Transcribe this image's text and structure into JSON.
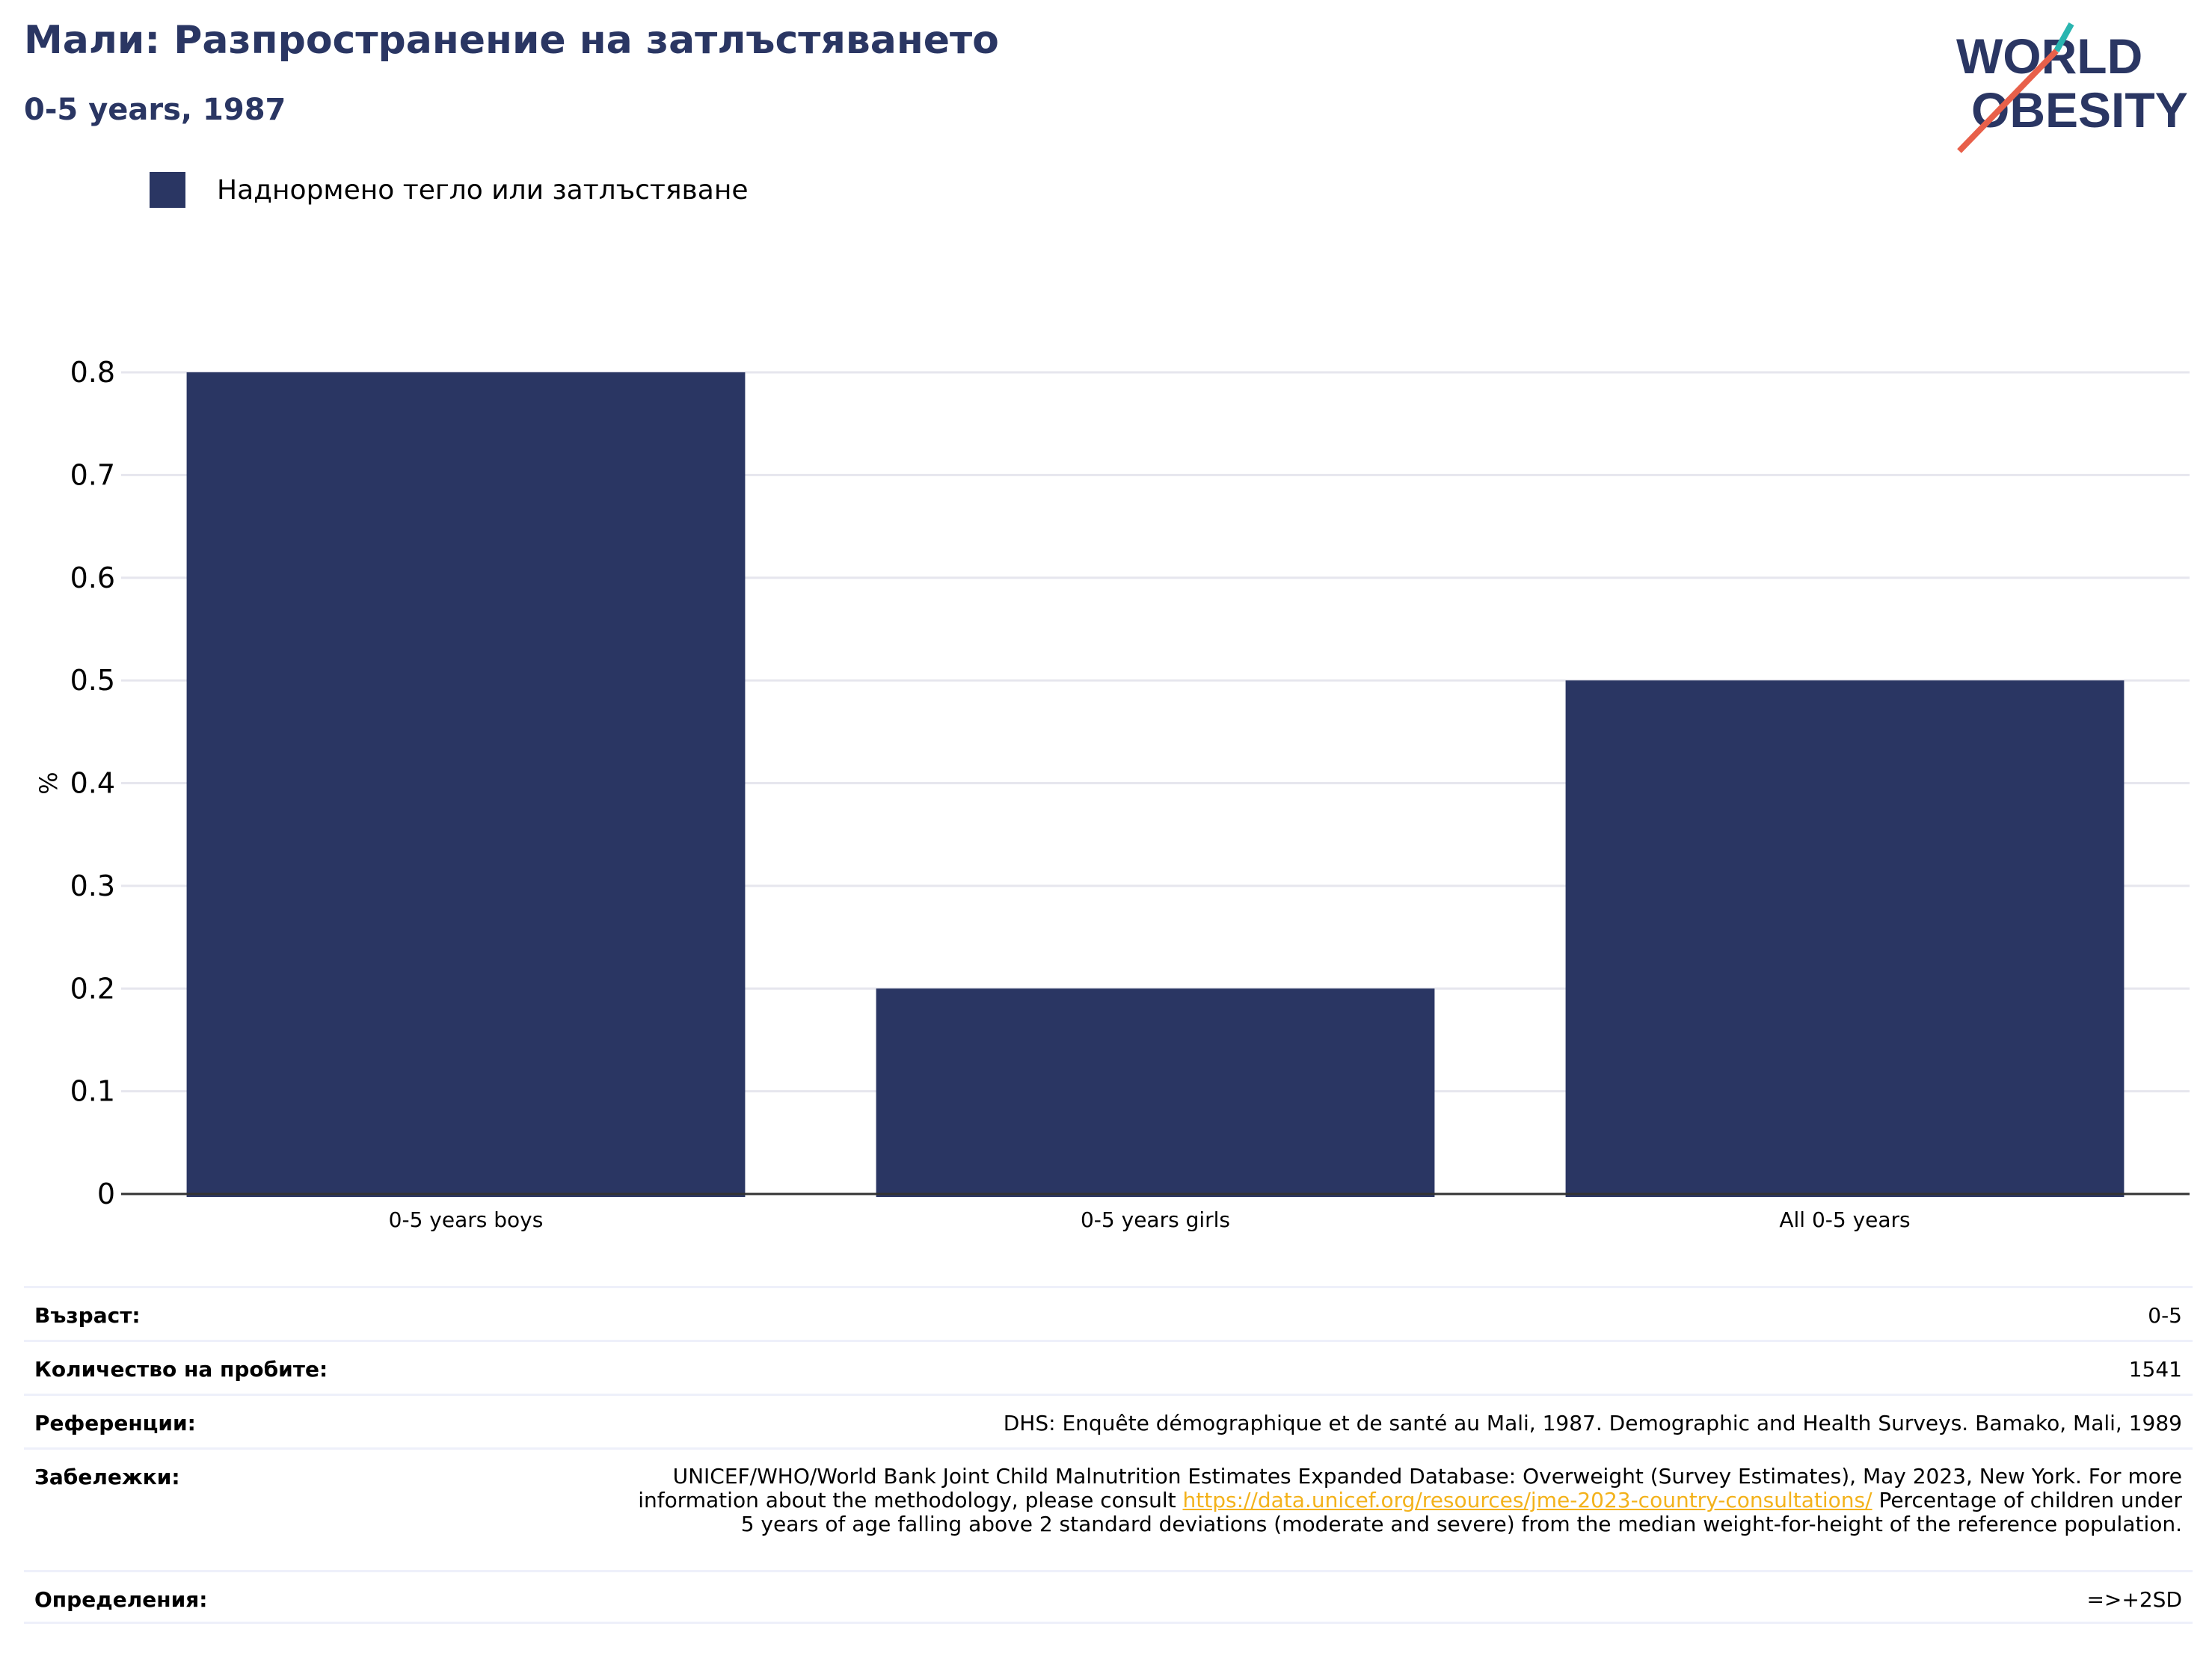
{
  "title": "Мали: Разпространение на затлъстяването",
  "subtitle": "0-5 years, 1987",
  "logo": {
    "line1": "WORLD",
    "line2": "OBESITY"
  },
  "legend": {
    "label": "Наднормено тегло или затлъстяване",
    "color": "#2a3663"
  },
  "chart_data": {
    "type": "bar",
    "categories": [
      "0-5 years boys",
      "0-5 years girls",
      "All 0-5 years"
    ],
    "series": [
      {
        "name": "Наднормено тегло или затлъстяване",
        "values": [
          0.8,
          0.2,
          0.5
        ]
      }
    ],
    "ylabel": "%",
    "ylim": [
      0,
      0.8
    ],
    "yticks": [
      "0",
      "0.1",
      "0.2",
      "0.3",
      "0.4",
      "0.5",
      "0.6",
      "0.7",
      "0.8"
    ],
    "grid": true,
    "legend_position": "top-left",
    "bar_color": "#2a3663"
  },
  "info": {
    "age_label": "Възраст:",
    "age_value": "0-5",
    "sample_label": "Количество на пробите:",
    "sample_value": "1541",
    "refs_label": "Референции:",
    "refs_value": "DHS: Enquête démographique et de santé au Mali, 1987. Demographic and Health Surveys. Bamako, Mali, 1989",
    "notes_label": "Забележки:",
    "notes_before": "UNICEF/WHO/World Bank Joint Child Malnutrition Estimates Expanded Database: Overweight (Survey Estimates), May 2023, New York. For more information about the methodology, please consult ",
    "notes_link": "https://data.unicef.org/resources/jme-2023-country-consultations/",
    "notes_after": " Percentage of children under 5 years of age falling above 2 standard deviations (moderate and severe) from the median weight-for-height of the reference population.",
    "defs_label": "Определения:",
    "defs_value": "=>+2SD"
  }
}
